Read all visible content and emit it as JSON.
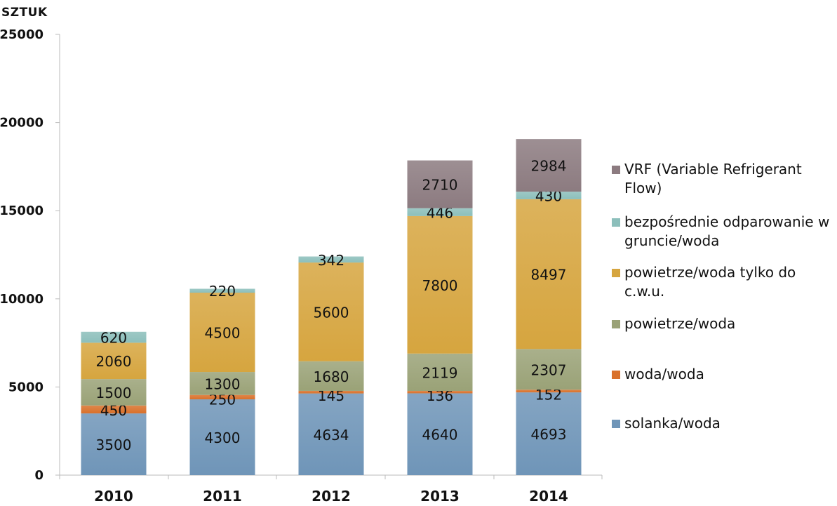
{
  "chart_data": {
    "type": "bar",
    "stacked": true,
    "ylabel": "SZTUK",
    "ylim": [
      0,
      25000
    ],
    "yticks": [
      0,
      5000,
      10000,
      15000,
      20000,
      25000
    ],
    "categories": [
      "2010",
      "2011",
      "2012",
      "2013",
      "2014"
    ],
    "series": [
      {
        "name": "solanka/woda",
        "color": "#6f95b8",
        "values": [
          3500,
          4300,
          4634,
          4640,
          4693
        ]
      },
      {
        "name": "woda/woda",
        "color": "#d9712b",
        "values": [
          450,
          250,
          145,
          136,
          152
        ]
      },
      {
        "name": "powietrze/woda",
        "color": "#9aa277",
        "values": [
          1500,
          1300,
          1680,
          2119,
          2307
        ]
      },
      {
        "name": "powietrze/woda tylko do c.w.u.",
        "color": "#d6a53f",
        "values": [
          2060,
          4500,
          5600,
          7800,
          8497
        ]
      },
      {
        "name": "bezpośrednie odparowanie w gruncie/woda",
        "color": "#8cbfbb",
        "values": [
          620,
          220,
          342,
          446,
          430
        ]
      },
      {
        "name": "VRF (Variable Refrigerant Flow)",
        "color": "#8c7b80",
        "values": [
          null,
          null,
          null,
          2710,
          2984
        ]
      }
    ],
    "grid": false,
    "legend_position": "right"
  }
}
